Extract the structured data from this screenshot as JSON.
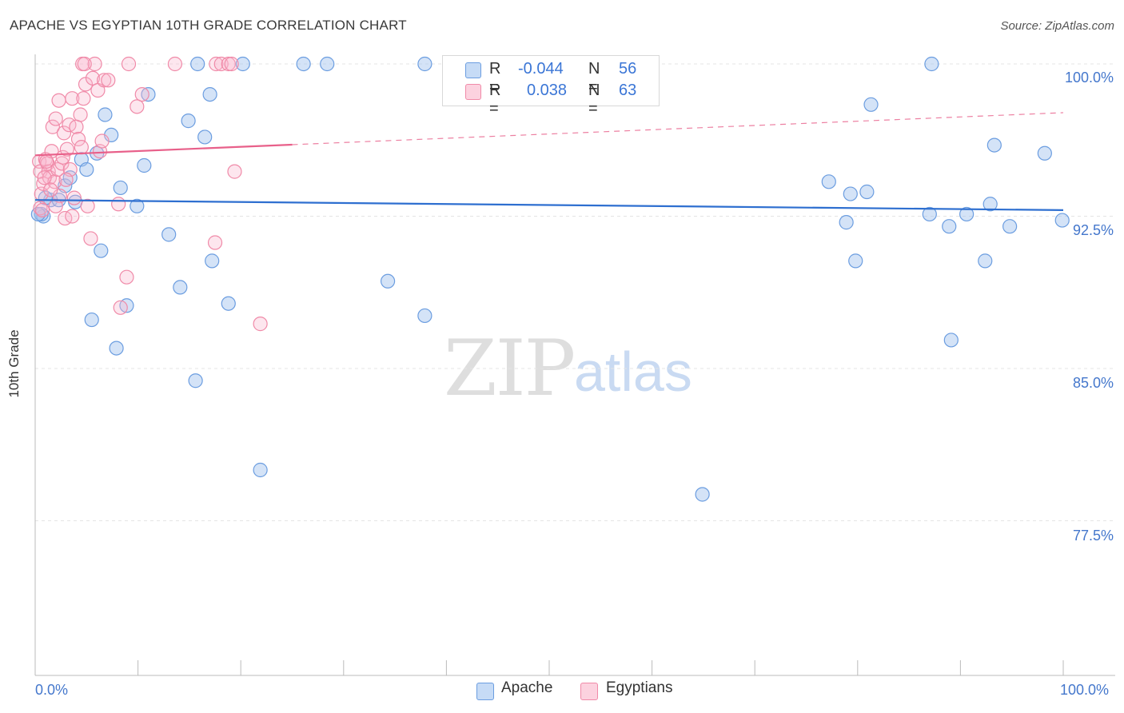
{
  "title": "APACHE VS EGYPTIAN 10TH GRADE CORRELATION CHART",
  "source": "Source: ZipAtlas.com",
  "watermark": {
    "zip": "ZIP",
    "atlas": "atlas"
  },
  "colors": {
    "apache": "#6b9de0",
    "egyptians": "#f08aa8",
    "apache_line": "#2e6fd0",
    "egyptians_line": "#e8608a",
    "tick_text": "#4477cc"
  },
  "legend": {
    "apache": {
      "r_label": "R =",
      "r_value": "-0.044",
      "n_label": "N =",
      "n_value": "56"
    },
    "egyptians": {
      "r_label": "R =",
      "r_value": "0.038",
      "n_label": "N =",
      "n_value": "63"
    }
  },
  "bottom_legend": {
    "apache": "Apache",
    "egyptians": "Egyptians"
  },
  "chart_data": {
    "type": "scatter",
    "title": "APACHE VS EGYPTIAN 10TH GRADE CORRELATION CHART",
    "xlabel": "",
    "ylabel": "10th Grade",
    "xlim": [
      0,
      100
    ],
    "ylim": [
      70,
      100.5
    ],
    "x_tick_labels": {
      "left": "0.0%",
      "right": "100.0%"
    },
    "y_ticks": [
      {
        "value": 100.0,
        "label": "100.0%"
      },
      {
        "value": 92.5,
        "label": "92.5%"
      },
      {
        "value": 85.0,
        "label": "85.0%"
      },
      {
        "value": 77.5,
        "label": "77.5%"
      }
    ],
    "series": [
      {
        "name": "Apache",
        "trend": {
          "x0": 0,
          "y0": 93.3,
          "x1": 100,
          "y1": 92.8,
          "dashed_from": null
        },
        "points": [
          [
            0.8,
            92.5
          ],
          [
            0.6,
            92.6
          ],
          [
            1.5,
            93.3
          ],
          [
            2.3,
            93.3
          ],
          [
            2.9,
            94.0
          ],
          [
            3.4,
            94.4
          ],
          [
            3.9,
            93.2
          ],
          [
            4.5,
            95.3
          ],
          [
            5.0,
            94.8
          ],
          [
            5.5,
            87.4
          ],
          [
            6.0,
            95.6
          ],
          [
            6.4,
            90.8
          ],
          [
            6.8,
            97.5
          ],
          [
            7.4,
            96.5
          ],
          [
            7.9,
            86.0
          ],
          [
            8.3,
            93.9
          ],
          [
            8.9,
            88.1
          ],
          [
            9.9,
            93.0
          ],
          [
            10.6,
            95.0
          ],
          [
            11.0,
            98.5
          ],
          [
            13.0,
            91.6
          ],
          [
            14.1,
            89.0
          ],
          [
            14.9,
            97.2
          ],
          [
            15.6,
            84.4
          ],
          [
            15.8,
            100.0
          ],
          [
            16.5,
            96.4
          ],
          [
            17.0,
            98.5
          ],
          [
            17.2,
            90.3
          ],
          [
            18.8,
            88.2
          ],
          [
            20.2,
            100.0
          ],
          [
            21.9,
            80.0
          ],
          [
            26.1,
            100.0
          ],
          [
            28.4,
            100.0
          ],
          [
            34.3,
            89.3
          ],
          [
            37.9,
            87.6
          ],
          [
            37.9,
            100.0
          ],
          [
            64.9,
            78.8
          ],
          [
            77.2,
            94.2
          ],
          [
            78.9,
            92.2
          ],
          [
            79.3,
            93.6
          ],
          [
            79.8,
            90.3
          ],
          [
            80.9,
            93.7
          ],
          [
            81.3,
            98.0
          ],
          [
            87.0,
            92.6
          ],
          [
            87.2,
            100.0
          ],
          [
            88.9,
            92.0
          ],
          [
            89.1,
            86.4
          ],
          [
            90.6,
            92.6
          ],
          [
            92.4,
            90.3
          ],
          [
            92.9,
            93.1
          ],
          [
            93.3,
            96.0
          ],
          [
            94.8,
            92.0
          ],
          [
            98.2,
            95.6
          ],
          [
            99.9,
            92.3
          ],
          [
            0.3,
            92.6
          ],
          [
            1.0,
            93.4
          ]
        ]
      },
      {
        "name": "Egyptians",
        "trend": {
          "x0": 0,
          "y0": 95.5,
          "x1": 100,
          "y1": 97.6,
          "solid_until": 25.0
        },
        "points": [
          [
            0.4,
            95.2
          ],
          [
            0.5,
            94.7
          ],
          [
            0.5,
            92.9
          ],
          [
            0.6,
            93.6
          ],
          [
            0.7,
            92.8
          ],
          [
            0.8,
            94.1
          ],
          [
            1.0,
            95.3
          ],
          [
            1.2,
            95.1
          ],
          [
            1.3,
            94.7
          ],
          [
            1.4,
            94.4
          ],
          [
            1.6,
            95.7
          ],
          [
            1.7,
            96.9
          ],
          [
            1.9,
            94.2
          ],
          [
            2.0,
            97.3
          ],
          [
            2.2,
            94.8
          ],
          [
            2.3,
            98.2
          ],
          [
            2.4,
            93.5
          ],
          [
            2.6,
            95.1
          ],
          [
            2.7,
            95.4
          ],
          [
            2.8,
            96.6
          ],
          [
            2.9,
            92.4
          ],
          [
            3.1,
            95.8
          ],
          [
            3.3,
            97.0
          ],
          [
            3.4,
            94.8
          ],
          [
            3.6,
            92.5
          ],
          [
            3.6,
            98.3
          ],
          [
            3.8,
            93.4
          ],
          [
            4.0,
            96.9
          ],
          [
            4.2,
            96.3
          ],
          [
            4.4,
            97.5
          ],
          [
            4.5,
            95.9
          ],
          [
            4.6,
            100.0
          ],
          [
            4.7,
            98.3
          ],
          [
            4.9,
            99.0
          ],
          [
            5.1,
            93.0
          ],
          [
            5.4,
            91.4
          ],
          [
            5.6,
            99.3
          ],
          [
            5.8,
            100.0
          ],
          [
            6.1,
            98.7
          ],
          [
            6.3,
            95.7
          ],
          [
            6.5,
            96.2
          ],
          [
            6.7,
            99.2
          ],
          [
            7.1,
            99.2
          ],
          [
            8.1,
            93.1
          ],
          [
            8.3,
            88.0
          ],
          [
            8.9,
            89.5
          ],
          [
            9.1,
            100.0
          ],
          [
            9.9,
            97.9
          ],
          [
            10.4,
            98.5
          ],
          [
            13.6,
            100.0
          ],
          [
            17.6,
            100.0
          ],
          [
            18.1,
            100.0
          ],
          [
            18.8,
            100.0
          ],
          [
            19.1,
            100.0
          ],
          [
            19.4,
            94.7
          ],
          [
            21.9,
            87.2
          ],
          [
            17.5,
            91.2
          ],
          [
            1.1,
            95.2
          ],
          [
            2.0,
            93.0
          ],
          [
            3.0,
            94.3
          ],
          [
            4.8,
            100.0
          ],
          [
            0.9,
            94.4
          ],
          [
            1.5,
            93.8
          ]
        ]
      }
    ]
  }
}
